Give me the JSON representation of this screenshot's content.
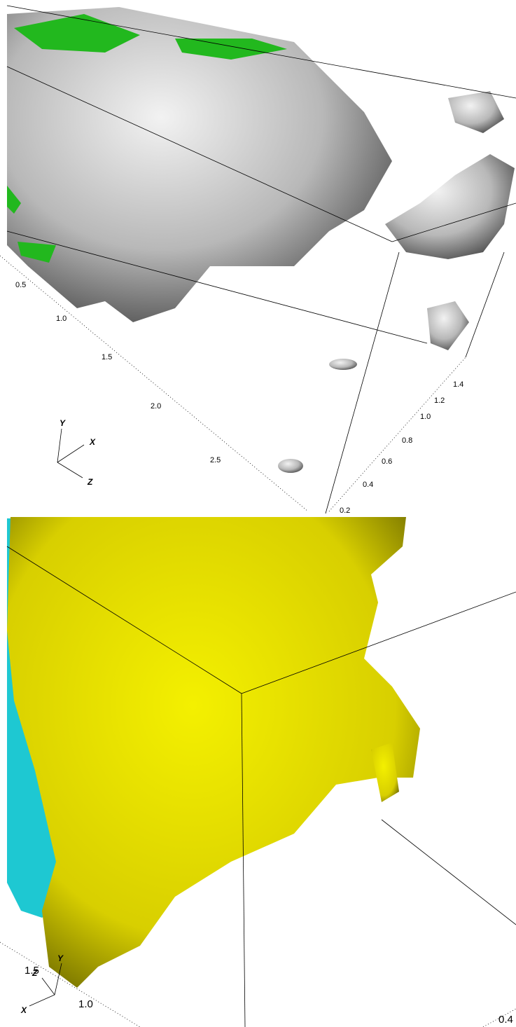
{
  "panels": [
    {
      "axis_a_labels": [
        "0.5",
        "1.0",
        "1.5",
        "2.0",
        "2.5"
      ],
      "axis_b_labels": [
        "1.4",
        "1.2",
        "1.0",
        "0.8",
        "0.6",
        "0.4",
        "0.2"
      ],
      "triad": [
        "Y",
        "X",
        "Z"
      ]
    },
    {
      "axis_a_labels": [
        "1.5",
        "1.0"
      ],
      "axis_b_labels": [
        "0.4"
      ],
      "triad": [
        "Y",
        "Z",
        "X"
      ]
    }
  ]
}
